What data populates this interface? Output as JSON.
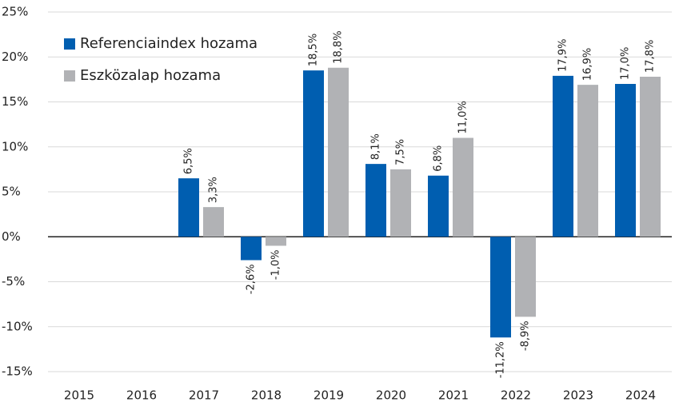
{
  "chart_data": {
    "type": "bar",
    "categories": [
      "2015",
      "2016",
      "2017",
      "2018",
      "2019",
      "2020",
      "2021",
      "2022",
      "2023",
      "2024"
    ],
    "series": [
      {
        "name": "Referenciaindex hozama",
        "color": "#005eb0",
        "values": [
          null,
          null,
          6.5,
          -2.6,
          18.5,
          8.1,
          6.8,
          -11.2,
          17.9,
          17.0
        ],
        "value_labels": [
          null,
          null,
          "6,5%",
          "-2,6%",
          "18,5%",
          "8,1%",
          "6,8%",
          "-11,2%",
          "17,9%",
          "17,0%"
        ]
      },
      {
        "name": "Eszközalap hozama",
        "color": "#b1b2b5",
        "values": [
          null,
          null,
          3.3,
          -1.0,
          18.8,
          7.5,
          11.0,
          -8.9,
          16.9,
          17.8
        ],
        "value_labels": [
          null,
          null,
          "3,3%",
          "-1,0%",
          "18,8%",
          "7,5%",
          "11,0%",
          "-8,9%",
          "16,9%",
          "17,8%"
        ]
      }
    ],
    "ylim": [
      -15,
      25
    ],
    "yticks": [
      {
        "value": -15,
        "label": "-15%"
      },
      {
        "value": -10,
        "label": "-10%"
      },
      {
        "value": -5,
        "label": "-5%"
      },
      {
        "value": 0,
        "label": "0%"
      },
      {
        "value": 5,
        "label": "5%"
      },
      {
        "value": 10,
        "label": "10%"
      },
      {
        "value": 15,
        "label": "15%"
      },
      {
        "value": 20,
        "label": "20%"
      },
      {
        "value": 25,
        "label": "25%"
      }
    ],
    "grid": true,
    "legend": "top-left"
  }
}
